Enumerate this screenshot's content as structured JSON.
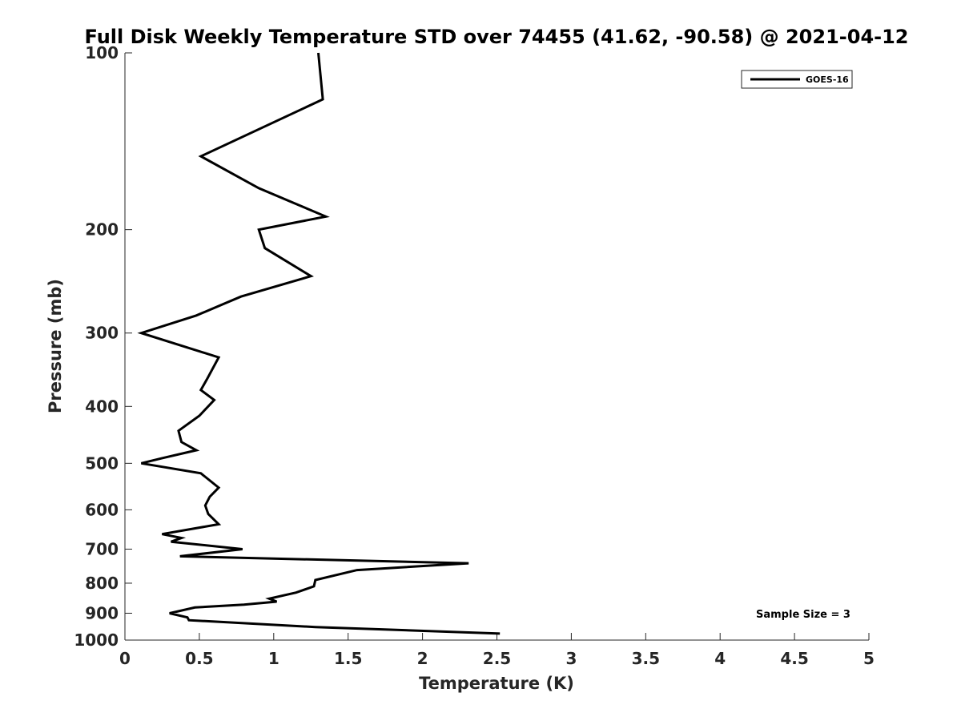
{
  "chart_data": {
    "type": "line",
    "title": "Full Disk Weekly Temperature STD over 74455 (41.62, -90.58) @ 2021-04-12",
    "xlabel": "Temperature (K)",
    "ylabel": "Pressure (mb)",
    "xlim": [
      0,
      5
    ],
    "ylim": [
      100,
      1000
    ],
    "y_scale": "log",
    "y_reversed": true,
    "grid": false,
    "x_ticks": [
      {
        "value": 0,
        "label": "0"
      },
      {
        "value": 0.5,
        "label": "0.5"
      },
      {
        "value": 1,
        "label": "1"
      },
      {
        "value": 1.5,
        "label": "1.5"
      },
      {
        "value": 2,
        "label": "2"
      },
      {
        "value": 2.5,
        "label": "2.5"
      },
      {
        "value": 3,
        "label": "3"
      },
      {
        "value": 3.5,
        "label": "3.5"
      },
      {
        "value": 4,
        "label": "4"
      },
      {
        "value": 4.5,
        "label": "4.5"
      },
      {
        "value": 5,
        "label": "5"
      }
    ],
    "y_ticks": [
      {
        "value": 100,
        "label": "100"
      },
      {
        "value": 200,
        "label": "200"
      },
      {
        "value": 300,
        "label": "300"
      },
      {
        "value": 400,
        "label": "400"
      },
      {
        "value": 500,
        "label": "500"
      },
      {
        "value": 600,
        "label": "600"
      },
      {
        "value": 700,
        "label": "700"
      },
      {
        "value": 800,
        "label": "800"
      },
      {
        "value": 900,
        "label": "900"
      },
      {
        "value": 1000,
        "label": "1000"
      }
    ],
    "legend_position": "top-right",
    "series": [
      {
        "name": "GOES-16",
        "color": "#000000",
        "points": [
          {
            "x": 1.3,
            "p": 100
          },
          {
            "x": 1.33,
            "p": 120
          },
          {
            "x": 0.51,
            "p": 150
          },
          {
            "x": 0.9,
            "p": 170
          },
          {
            "x": 1.35,
            "p": 190
          },
          {
            "x": 0.9,
            "p": 200
          },
          {
            "x": 0.94,
            "p": 215
          },
          {
            "x": 1.25,
            "p": 240
          },
          {
            "x": 0.78,
            "p": 260
          },
          {
            "x": 0.48,
            "p": 280
          },
          {
            "x": 0.11,
            "p": 300
          },
          {
            "x": 0.63,
            "p": 330
          },
          {
            "x": 0.55,
            "p": 360
          },
          {
            "x": 0.51,
            "p": 375
          },
          {
            "x": 0.6,
            "p": 390
          },
          {
            "x": 0.5,
            "p": 415
          },
          {
            "x": 0.36,
            "p": 440
          },
          {
            "x": 0.38,
            "p": 460
          },
          {
            "x": 0.48,
            "p": 475
          },
          {
            "x": 0.25,
            "p": 490
          },
          {
            "x": 0.11,
            "p": 500
          },
          {
            "x": 0.51,
            "p": 520
          },
          {
            "x": 0.63,
            "p": 550
          },
          {
            "x": 0.57,
            "p": 570
          },
          {
            "x": 0.54,
            "p": 590
          },
          {
            "x": 0.56,
            "p": 610
          },
          {
            "x": 0.63,
            "p": 635
          },
          {
            "x": 0.25,
            "p": 660
          },
          {
            "x": 0.38,
            "p": 670
          },
          {
            "x": 0.31,
            "p": 680
          },
          {
            "x": 0.79,
            "p": 700
          },
          {
            "x": 0.37,
            "p": 720
          },
          {
            "x": 2.31,
            "p": 740
          },
          {
            "x": 1.56,
            "p": 760
          },
          {
            "x": 1.28,
            "p": 790
          },
          {
            "x": 1.27,
            "p": 810
          },
          {
            "x": 1.15,
            "p": 830
          },
          {
            "x": 0.97,
            "p": 850
          },
          {
            "x": 1.02,
            "p": 860
          },
          {
            "x": 0.8,
            "p": 870
          },
          {
            "x": 0.47,
            "p": 880
          },
          {
            "x": 0.3,
            "p": 900
          },
          {
            "x": 0.42,
            "p": 915
          },
          {
            "x": 0.43,
            "p": 925
          },
          {
            "x": 1.28,
            "p": 950
          },
          {
            "x": 2.52,
            "p": 975
          }
        ]
      }
    ],
    "annotation": "Sample Size = 3"
  }
}
